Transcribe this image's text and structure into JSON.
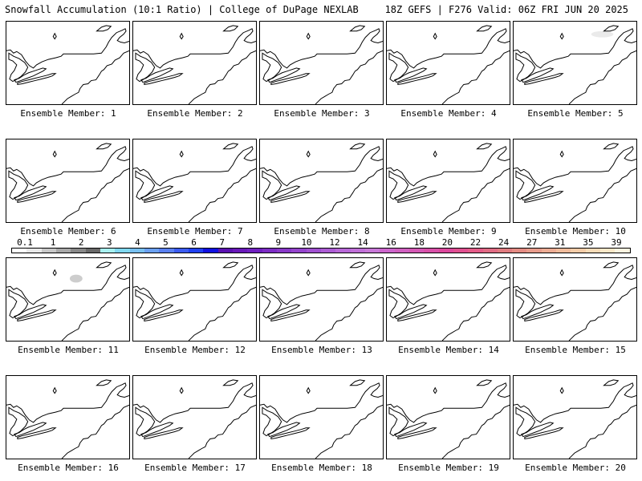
{
  "header": {
    "left": "Snowfall Accumulation (10:1 Ratio) | College of DuPage NEXLAB",
    "right": "18Z GEFS | F276 Valid: 06Z FRI JUN 20 2025"
  },
  "panels": [
    {
      "label": "Ensemble Member: 1",
      "snow_shown": false
    },
    {
      "label": "Ensemble Member: 2",
      "snow_shown": false
    },
    {
      "label": "Ensemble Member: 3",
      "snow_shown": false
    },
    {
      "label": "Ensemble Member: 4",
      "snow_shown": false
    },
    {
      "label": "Ensemble Member: 5",
      "snow_shown": true
    },
    {
      "label": "Ensemble Member: 6",
      "snow_shown": false
    },
    {
      "label": "Ensemble Member: 7",
      "snow_shown": false
    },
    {
      "label": "Ensemble Member: 8",
      "snow_shown": false
    },
    {
      "label": "Ensemble Member: 9",
      "snow_shown": false
    },
    {
      "label": "Ensemble Member: 10",
      "snow_shown": false
    },
    {
      "label": "Ensemble Member: 11",
      "snow_shown": true
    },
    {
      "label": "Ensemble Member: 12",
      "snow_shown": false
    },
    {
      "label": "Ensemble Member: 13",
      "snow_shown": false
    },
    {
      "label": "Ensemble Member: 14",
      "snow_shown": false
    },
    {
      "label": "Ensemble Member: 15",
      "snow_shown": false
    },
    {
      "label": "Ensemble Member: 16",
      "snow_shown": false
    },
    {
      "label": "Ensemble Member: 17",
      "snow_shown": false
    },
    {
      "label": "Ensemble Member: 18",
      "snow_shown": false
    },
    {
      "label": "Ensemble Member: 19",
      "snow_shown": false
    },
    {
      "label": "Ensemble Member: 20",
      "snow_shown": false
    }
  ],
  "colorbar": {
    "labels": [
      "0.1",
      "1",
      "2",
      "3",
      "4",
      "5",
      "6",
      "7",
      "8",
      "9",
      "10",
      "12",
      "14",
      "16",
      "18",
      "20",
      "22",
      "24",
      "27",
      "31",
      "35",
      "39"
    ],
    "colors": [
      "#ffffff",
      "#e8e8e8",
      "#c8c8c8",
      "#a8a8a8",
      "#888888",
      "#686868",
      "#a8f0f0",
      "#80d8f0",
      "#78c0f0",
      "#6aa0f0",
      "#5a80f0",
      "#3c5cf0",
      "#2040f0",
      "#1010e0",
      "#5a10b0",
      "#6818b8",
      "#7020c0",
      "#7c2cc4",
      "#8838c8",
      "#9444cc",
      "#a050d0",
      "#ac5cd4",
      "#b868d8",
      "#c070d8",
      "#c878d8",
      "#cc66cc",
      "#d060c0",
      "#d458b4",
      "#d850a8",
      "#dc489c",
      "#e05090",
      "#e45c88",
      "#e06c84",
      "#e07c80",
      "#e48c84",
      "#e89c8c",
      "#ecac94",
      "#f0bc9c",
      "#f4cca8",
      "#f8dcb8",
      "#fbe8c8",
      "#fdf4e0"
    ]
  }
}
